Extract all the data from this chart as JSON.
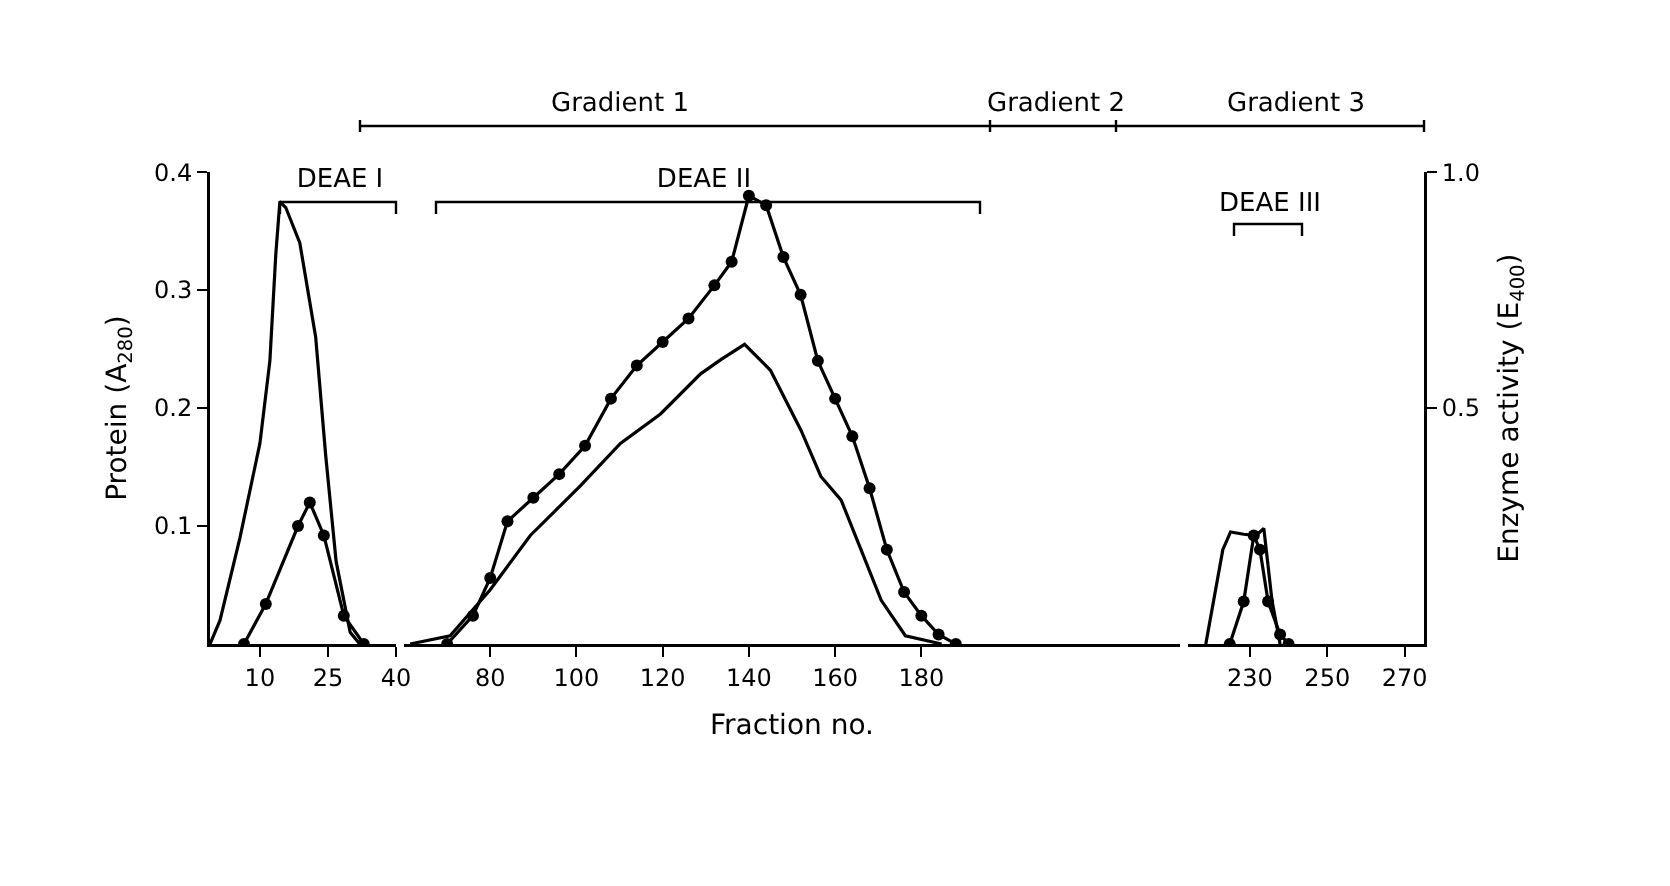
{
  "chart_data": [
    {
      "type": "line",
      "ylabel": "Protein (A$_{280}$)",
      "xlim": [
        -1,
        40
      ],
      "xticks": [
        10,
        25,
        40
      ],
      "ylim": [
        0,
        0.4
      ],
      "yticks": [
        0.1,
        0.2,
        0.3,
        0.4
      ],
      "y2lim": [
        0,
        1
      ],
      "series": [
        {
          "color": "#000000",
          "marker": "none",
          "x": [
            -1,
            1.2,
            5.6,
            10,
            12.2,
            13.5,
            14.4,
            15.7,
            18.8,
            22.3,
            24.5,
            26.8,
            29.9,
            32
          ],
          "values": [
            0,
            0.02,
            0.09,
            0.17,
            0.24,
            0.33,
            0.375,
            0.37,
            0.34,
            0.26,
            0.16,
            0.07,
            0.01,
            0
          ]
        },
        {
          "color": "#000000",
          "marker": "circle",
          "axis": "y2",
          "x": [
            6.5,
            11.3,
            18.4,
            21,
            24.1,
            28.5,
            32.9
          ],
          "values": [
            0,
            0.085,
            0.25,
            0.3,
            0.23,
            0.06,
            0
          ]
        }
      ],
      "annotations": [
        "DEAE I"
      ]
    },
    {
      "type": "line",
      "xlabel": "Fraction no.",
      "xlim": [
        60,
        240
      ],
      "xticks": [
        80,
        100,
        120,
        140,
        160,
        180
      ],
      "ylim": [
        0,
        0.4
      ],
      "y2lim": [
        0,
        1
      ],
      "tick_labels": "x",
      "series": [
        {
          "color": "#000000",
          "marker": "none",
          "x": [
            61.4,
            70.7,
            80,
            89.3,
            100.9,
            110.2,
            119.5,
            128.8,
            133.5,
            139,
            145,
            152.1,
            156.7,
            161.4,
            166,
            170.7,
            176.3,
            184.7
          ],
          "values": [
            0,
            0.007,
            0.046,
            0.092,
            0.134,
            0.17,
            0.195,
            0.229,
            0.241,
            0.254,
            0.232,
            0.181,
            0.142,
            0.122,
            0.08,
            0.037,
            0.007,
            0
          ]
        },
        {
          "color": "#000000",
          "marker": "circle",
          "axis": "y2",
          "x": [
            70,
            76,
            80,
            84,
            90,
            96,
            102,
            108,
            114,
            120,
            126,
            132,
            136,
            140,
            144,
            148,
            152,
            156,
            160,
            164,
            168,
            172,
            176,
            180,
            184,
            188
          ],
          "values": [
            0,
            0.06,
            0.14,
            0.26,
            0.31,
            0.36,
            0.42,
            0.52,
            0.59,
            0.64,
            0.69,
            0.76,
            0.81,
            0.95,
            0.93,
            0.82,
            0.74,
            0.6,
            0.52,
            0.44,
            0.33,
            0.2,
            0.11,
            0.06,
            0.02,
            0
          ]
        }
      ],
      "annotations": [
        "Gradient 1",
        "Gradient 2",
        "DEAE II"
      ]
    },
    {
      "type": "line",
      "y2label": "Enzyme activity (E$_{400}$)",
      "xlim": [
        214,
        275
      ],
      "xticks": [
        230,
        250,
        270
      ],
      "ylim": [
        0,
        0.4
      ],
      "y2lim": [
        0,
        1
      ],
      "y2ticks": [
        0.5,
        {
          "value": 1,
          "label": "1.0"
        }
      ],
      "series": [
        {
          "color": "#000000",
          "marker": "none",
          "x": [
            218.6,
            223,
            225,
            228.4,
            231.6,
            233.6,
            235.7,
            237.8
          ],
          "values": [
            0,
            0.08,
            0.095,
            0.093,
            0.092,
            0.098,
            0.037,
            0
          ]
        },
        {
          "color": "#000000",
          "marker": "circle",
          "axis": "y2",
          "x": [
            224.8,
            228.4,
            231,
            232.6,
            234.7,
            237.8,
            240
          ],
          "values": [
            0,
            0.09,
            0.23,
            0.2,
            0.09,
            0.02,
            0
          ]
        }
      ],
      "annotations": [
        "Gradient 3",
        "DEAE III"
      ]
    }
  ]
}
